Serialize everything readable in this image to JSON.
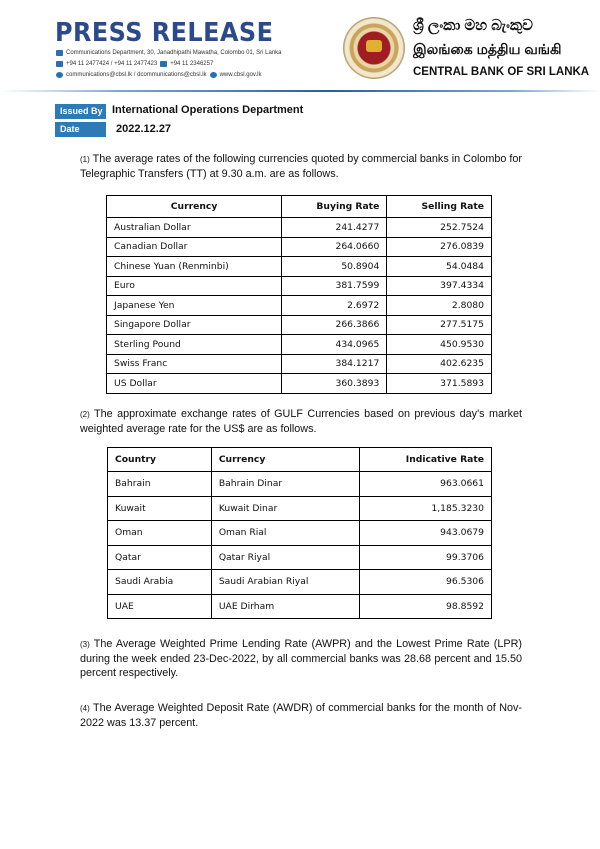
{
  "header": {
    "title": "PRESS RELEASE",
    "address": "Communications Department, 30, Janadhipathi Mawatha, Colombo 01, Sri Lanka",
    "phone": "+94 11 2477424 / +94 11 2477423",
    "fax": "+94 11  2346257",
    "email": "communications@cbsl.lk / dcommunications@cbsl.lk",
    "web": "www.cbsl.gov.lk",
    "bank_sinhala": "ශ්‍රී ලංකා මහ බැංකුව",
    "bank_tamil": "இலங்கை மத்திய வங்கி",
    "bank_english": "CENTRAL BANK OF SRI LANKA"
  },
  "meta": {
    "issued_by_label": "Issued By",
    "issued_by": "International Operations Department",
    "date_label": "Date",
    "date": "2022.12.27"
  },
  "p1": {
    "num": "(1)",
    "text": " The average rates of the following currencies quoted by commercial banks in Colombo for Telegraphic Transfers (TT) at 9.30 a.m. are as follows."
  },
  "table1": {
    "headers": [
      "Currency",
      "Buying Rate",
      "Selling Rate"
    ],
    "rows": [
      [
        "Australian Dollar",
        "241.4277",
        "252.7524"
      ],
      [
        "Canadian Dollar",
        "264.0660",
        "276.0839"
      ],
      [
        "Chinese Yuan (Renminbi)",
        "50.8904",
        "54.0484"
      ],
      [
        "Euro",
        "381.7599",
        "397.4334"
      ],
      [
        "Japanese Yen",
        "2.6972",
        "2.8080"
      ],
      [
        "Singapore Dollar",
        "266.3866",
        "277.5175"
      ],
      [
        "Sterling Pound",
        "434.0965",
        "450.9530"
      ],
      [
        "Swiss Franc",
        "384.1217",
        "402.6235"
      ],
      [
        "US Dollar",
        "360.3893",
        "371.5893"
      ]
    ]
  },
  "p2": {
    "num": "(2)",
    "text": " The approximate exchange rates of GULF Currencies based on previous day's market weighted average rate for the US$ are as follows."
  },
  "table2": {
    "headers": [
      "Country",
      "Currency",
      "Indicative Rate"
    ],
    "rows": [
      [
        "Bahrain",
        "Bahrain Dinar",
        "963.0661"
      ],
      [
        "Kuwait",
        "Kuwait Dinar",
        "1,185.3230"
      ],
      [
        "Oman",
        "Oman Rial",
        "943.0679"
      ],
      [
        "Qatar",
        "Qatar Riyal",
        "99.3706"
      ],
      [
        "Saudi Arabia",
        "Saudi Arabian Riyal",
        "96.5306"
      ],
      [
        "UAE",
        "UAE Dirham",
        "98.8592"
      ]
    ]
  },
  "p3": {
    "num": "(3)",
    "text": " The Average Weighted Prime Lending Rate (AWPR) and the Lowest Prime Rate (LPR) during the week ended 23-Dec-2022, by all commercial banks was 28.68 percent and 15.50 percent respectively."
  },
  "p4": {
    "num": "(4)",
    "text": " The Average Weighted Deposit Rate (AWDR) of commercial banks for the month of Nov-2022 was 13.37 percent."
  }
}
